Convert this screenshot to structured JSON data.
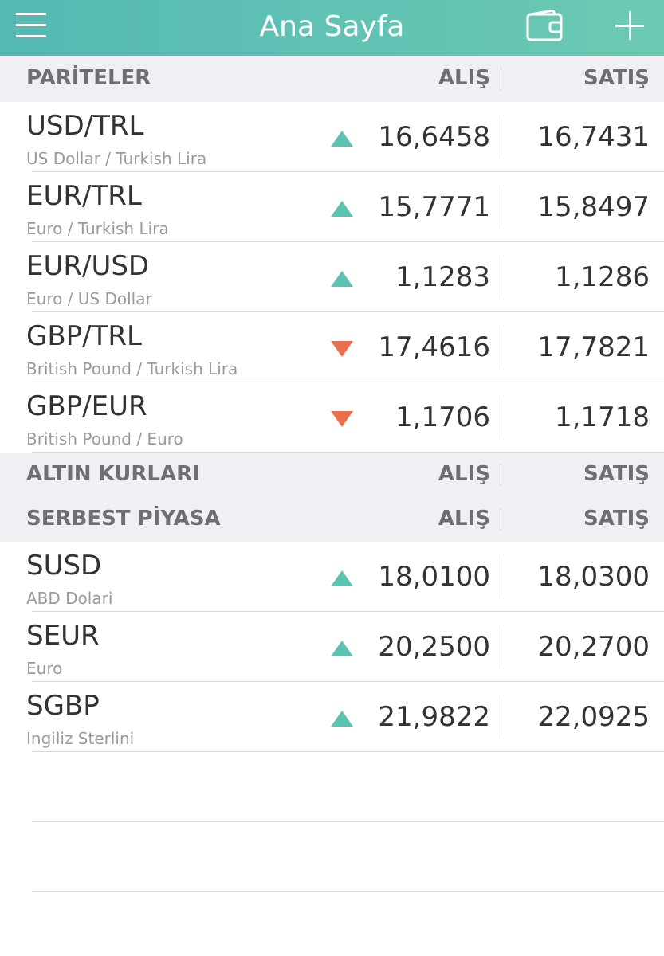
{
  "header": {
    "title": "Ana Sayfa"
  },
  "sections": [
    {
      "title": "PARİTELER",
      "buy_label": "ALIŞ",
      "sell_label": "SATIŞ",
      "rows": [
        {
          "code": "USD/TRL",
          "name": "US Dollar / Turkish Lira",
          "trend": "up",
          "buy": "16,6458",
          "sell": "16,7431"
        },
        {
          "code": "EUR/TRL",
          "name": "Euro / Turkish Lira",
          "trend": "up",
          "buy": "15,7771",
          "sell": "15,8497"
        },
        {
          "code": "EUR/USD",
          "name": "Euro / US Dollar",
          "trend": "up",
          "buy": "1,1283",
          "sell": "1,1286"
        },
        {
          "code": "GBP/TRL",
          "name": "British Pound / Turkish Lira",
          "trend": "down",
          "buy": "17,4616",
          "sell": "17,7821"
        },
        {
          "code": "GBP/EUR",
          "name": "British Pound / Euro",
          "trend": "down",
          "buy": "1,1706",
          "sell": "1,1718"
        }
      ]
    },
    {
      "title": "ALTIN KURLARI",
      "buy_label": "ALIŞ",
      "sell_label": "SATIŞ"
    },
    {
      "title": "SERBEST PİYASA",
      "buy_label": "ALIŞ",
      "sell_label": "SATIŞ",
      "rows": [
        {
          "code": "SUSD",
          "name": "ABD Dolari",
          "trend": "up",
          "buy": "18,0100",
          "sell": "18,0300"
        },
        {
          "code": "SEUR",
          "name": "Euro",
          "trend": "up",
          "buy": "20,2500",
          "sell": "20,2700"
        },
        {
          "code": "SGBP",
          "name": "Ingiliz Sterlini",
          "trend": "up",
          "buy": "21,9822",
          "sell": "22,0925"
        }
      ]
    }
  ]
}
